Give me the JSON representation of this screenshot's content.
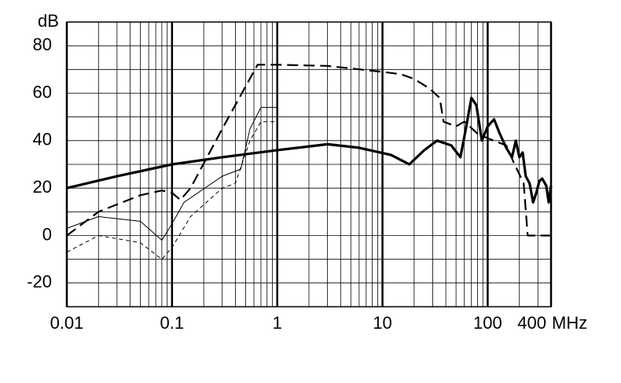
{
  "chart_data": {
    "type": "line",
    "y_label": "dB",
    "x_label": "MHz",
    "log_x": true,
    "xlim": [
      0.01,
      400
    ],
    "ylim": [
      -30,
      90
    ],
    "xticks": [
      0.01,
      0.1,
      1,
      10,
      100,
      400
    ],
    "yticks": [
      -20,
      0,
      20,
      40,
      60,
      80
    ],
    "xgrid_minor": [
      0.02,
      0.03,
      0.04,
      0.05,
      0.06,
      0.07,
      0.08,
      0.09,
      0.2,
      0.3,
      0.4,
      0.5,
      0.6,
      0.7,
      0.8,
      0.9,
      2,
      3,
      4,
      5,
      6,
      7,
      8,
      9,
      20,
      30,
      40,
      50,
      60,
      70,
      80,
      90,
      200,
      300
    ],
    "ygrid_minor": [
      -30,
      -10,
      10,
      30,
      50,
      70,
      90
    ],
    "grid": true,
    "series": [
      {
        "color": "#000000",
        "width": 3.2,
        "dash": "none",
        "x": [
          0.01,
          0.03,
          0.1,
          0.3,
          1,
          3,
          6,
          12,
          18,
          25,
          33,
          45,
          55,
          62,
          70,
          78,
          88,
          100,
          115,
          130,
          150,
          170,
          185,
          200,
          215,
          230,
          250,
          270,
          290,
          310,
          330,
          360,
          380,
          400
        ],
        "values": [
          20,
          25,
          30,
          33,
          36,
          38.5,
          37,
          34,
          30,
          36,
          40,
          38,
          33,
          45,
          58,
          55,
          40,
          46,
          49,
          43,
          37,
          33,
          40,
          33,
          35,
          25,
          22,
          14,
          18,
          23,
          24,
          21,
          14,
          21
        ]
      },
      {
        "color": "#000000",
        "width": 2.2,
        "dash": "14 7",
        "x": [
          0.01,
          0.02,
          0.05,
          0.08,
          0.1,
          0.12,
          0.15,
          0.3,
          0.65,
          1,
          3,
          10,
          15,
          20,
          28,
          35,
          38,
          50,
          60,
          80,
          100,
          150,
          180,
          220,
          240,
          400
        ],
        "values": [
          0,
          10,
          17,
          19,
          18,
          15,
          20,
          45,
          72,
          72,
          71.5,
          69,
          68,
          66,
          62,
          58,
          48,
          46,
          48,
          43,
          41,
          38,
          30,
          22,
          0,
          0
        ]
      },
      {
        "color": "#000000",
        "width": 1,
        "dash": "none",
        "x": [
          0.01,
          0.02,
          0.05,
          0.08,
          0.1,
          0.13,
          0.3,
          0.45,
          0.55,
          0.7,
          1
        ],
        "values": [
          3,
          8,
          6,
          -2,
          5,
          14,
          25,
          28,
          45,
          54,
          54
        ]
      },
      {
        "color": "#000000",
        "width": 1,
        "dash": "5 4",
        "x": [
          0.01,
          0.02,
          0.05,
          0.08,
          0.1,
          0.15,
          0.3,
          0.4,
          0.55,
          0.7,
          1
        ],
        "values": [
          -7,
          0,
          -3,
          -10,
          -5,
          8,
          20,
          22,
          40,
          48,
          48
        ]
      }
    ]
  }
}
